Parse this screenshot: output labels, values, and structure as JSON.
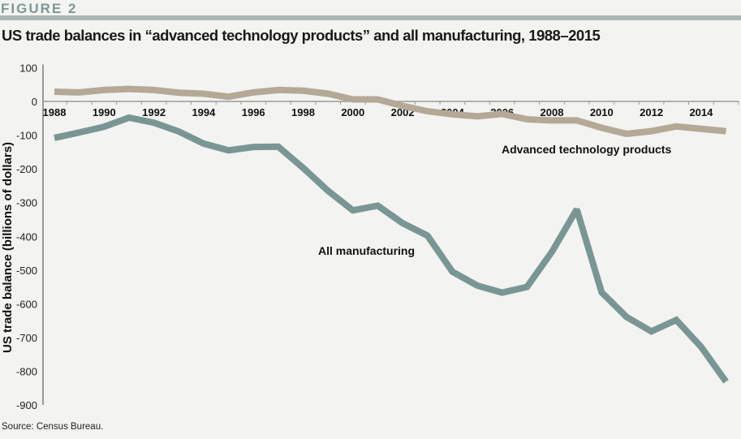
{
  "figure_label": "FIGURE 2",
  "source": "Source: Census Bureau.",
  "colors": {
    "advanced_technology_products": "#b3a996",
    "all_manufacturing": "#7a9694",
    "axis": "#9a9a9a",
    "header_bar": "#a7b7b5"
  },
  "chart_data": {
    "type": "line",
    "title": "US trade balances in “advanced technology products” and all manufacturing, 1988–2015",
    "xlabel": "",
    "ylabel": "US trade balance (billions of dollars)",
    "ylim": [
      -900,
      100
    ],
    "yticks": [
      100,
      0,
      -100,
      -200,
      -300,
      -400,
      -500,
      -600,
      -700,
      -800,
      -900
    ],
    "x": [
      1988,
      1989,
      1990,
      1991,
      1992,
      1993,
      1994,
      1995,
      1996,
      1997,
      1998,
      1999,
      2000,
      2001,
      2002,
      2003,
      2004,
      2005,
      2006,
      2007,
      2008,
      2009,
      2010,
      2011,
      2012,
      2013,
      2014,
      2015
    ],
    "xtick_labels": [
      "1988",
      "1990",
      "1992",
      "1994",
      "1996",
      "1998",
      "2000",
      "2002",
      "2004",
      "2006",
      "2008",
      "2010",
      "2012",
      "2014"
    ],
    "grid": false,
    "legend": "inline labels",
    "series": [
      {
        "name": "Advanced technology products",
        "values": [
          29,
          27,
          34,
          37,
          34,
          26,
          23,
          14,
          27,
          34,
          32,
          23,
          6,
          6,
          -13,
          -29,
          -38,
          -44,
          -37,
          -53,
          -56,
          -56,
          -78,
          -96,
          -88,
          -74,
          -81,
          -88
        ]
      },
      {
        "name": "All manufacturing",
        "values": [
          -108,
          -92,
          -75,
          -48,
          -63,
          -89,
          -125,
          -145,
          -135,
          -134,
          -197,
          -265,
          -323,
          -309,
          -361,
          -398,
          -505,
          -546,
          -567,
          -550,
          -446,
          -320,
          -566,
          -639,
          -682,
          -648,
          -728,
          -831
        ]
      }
    ]
  }
}
